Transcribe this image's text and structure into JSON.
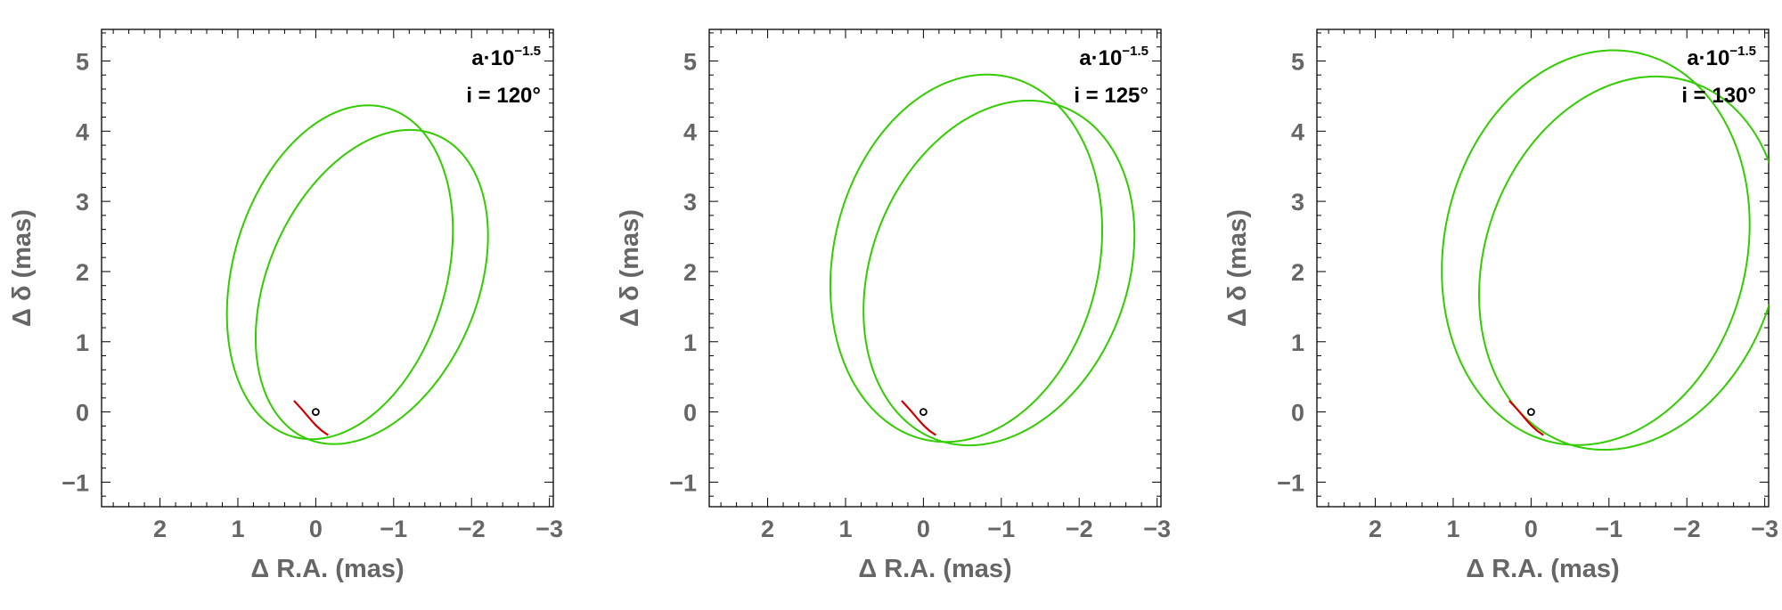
{
  "figure": {
    "chart_data": [
      {
        "type": "line",
        "xlabel": "Δ R.A. (mas)",
        "ylabel": "Δ δ (mas)",
        "xlim": [
          2.75,
          -3.05
        ],
        "ylim": [
          -1.35,
          5.45
        ],
        "x_reversed": true,
        "xticks": [
          2,
          1,
          0,
          -1,
          -2,
          -3
        ],
        "yticks": [
          -1,
          0,
          1,
          2,
          3,
          4,
          5
        ],
        "xtick_labels": [
          "2",
          "1",
          "0",
          "−1",
          "−2",
          "−3"
        ],
        "ytick_labels": [
          "−1",
          "0",
          "1",
          "2",
          "3",
          "4",
          "5"
        ],
        "annotation": {
          "line1_base": "a·10",
          "line1_exp": "−1.5",
          "line2": "i = 120°"
        },
        "colors": {
          "orbit": "#33cc00",
          "arc": "#cc0000",
          "star": "#000000",
          "frame": "#000000",
          "labels": "#666666"
        },
        "series": [
          {
            "kind": "orbit-ellipse",
            "center": [
              -0.31,
              1.99
            ],
            "semi_axes": [
              1.38,
              2.42
            ],
            "rotation_deg": 13
          },
          {
            "kind": "orbit-ellipse",
            "center": [
              -0.72,
              1.78
            ],
            "semi_axes": [
              1.36,
              2.32
            ],
            "rotation_deg": 19
          },
          {
            "kind": "arc",
            "x": [
              0.28,
              0.18,
              0.08,
              0.0,
              -0.08,
              -0.16
            ],
            "y": [
              0.16,
              0.04,
              -0.09,
              -0.19,
              -0.27,
              -0.33
            ]
          },
          {
            "kind": "star",
            "x": [
              0
            ],
            "y": [
              0
            ]
          }
        ]
      },
      {
        "type": "line",
        "xlabel": "Δ R.A. (mas)",
        "ylabel": "Δ δ (mas)",
        "xlim": [
          2.75,
          -3.05
        ],
        "ylim": [
          -1.35,
          5.45
        ],
        "x_reversed": true,
        "xticks": [
          2,
          1,
          0,
          -1,
          -2,
          -3
        ],
        "yticks": [
          -1,
          0,
          1,
          2,
          3,
          4,
          5
        ],
        "xtick_labels": [
          "2",
          "1",
          "0",
          "−1",
          "−2",
          "−3"
        ],
        "ytick_labels": [
          "−1",
          "0",
          "1",
          "2",
          "3",
          "4",
          "5"
        ],
        "annotation": {
          "line1_base": "a·10",
          "line1_exp": "−1.5",
          "line2": "i = 125°"
        },
        "colors": {
          "orbit": "#33cc00",
          "arc": "#cc0000",
          "star": "#000000",
          "frame": "#000000",
          "labels": "#666666"
        },
        "series": [
          {
            "kind": "orbit-ellipse",
            "center": [
              -0.55,
              2.19
            ],
            "semi_axes": [
              1.71,
              2.64
            ],
            "rotation_deg": 10
          },
          {
            "kind": "orbit-ellipse",
            "center": [
              -0.97,
              1.98
            ],
            "semi_axes": [
              1.66,
              2.51
            ],
            "rotation_deg": 16
          },
          {
            "kind": "arc",
            "x": [
              0.28,
              0.18,
              0.08,
              0.0,
              -0.08,
              -0.16
            ],
            "y": [
              0.16,
              0.04,
              -0.09,
              -0.19,
              -0.27,
              -0.33
            ]
          },
          {
            "kind": "star",
            "x": [
              0
            ],
            "y": [
              0
            ]
          }
        ]
      },
      {
        "type": "line",
        "xlabel": "Δ R.A. (mas)",
        "ylabel": "Δ δ (mas)",
        "xlim": [
          2.75,
          -3.05
        ],
        "ylim": [
          -1.35,
          5.45
        ],
        "x_reversed": true,
        "xticks": [
          2,
          1,
          0,
          -1,
          -2,
          -3
        ],
        "yticks": [
          -1,
          0,
          1,
          2,
          3,
          4,
          5
        ],
        "xtick_labels": [
          "2",
          "1",
          "0",
          "−1",
          "−2",
          "−3"
        ],
        "ytick_labels": [
          "−1",
          "0",
          "1",
          "2",
          "3",
          "4",
          "5"
        ],
        "annotation": {
          "line1_base": "a·10",
          "line1_exp": "−1.5",
          "line2": "i = 130°"
        },
        "colors": {
          "orbit": "#33cc00",
          "arc": "#cc0000",
          "star": "#000000",
          "frame": "#000000",
          "labels": "#666666"
        },
        "series": [
          {
            "kind": "orbit-ellipse",
            "center": [
              -0.83,
              2.34
            ],
            "semi_axes": [
              1.95,
              2.83
            ],
            "rotation_deg": 9
          },
          {
            "kind": "orbit-ellipse",
            "center": [
              -1.27,
              2.12
            ],
            "semi_axes": [
              1.88,
              2.7
            ],
            "rotation_deg": 14
          },
          {
            "kind": "arc",
            "x": [
              0.28,
              0.18,
              0.08,
              0.0,
              -0.08,
              -0.16
            ],
            "y": [
              0.16,
              0.04,
              -0.09,
              -0.19,
              -0.27,
              -0.33
            ]
          },
          {
            "kind": "star",
            "x": [
              0
            ],
            "y": [
              0
            ]
          }
        ]
      }
    ]
  }
}
